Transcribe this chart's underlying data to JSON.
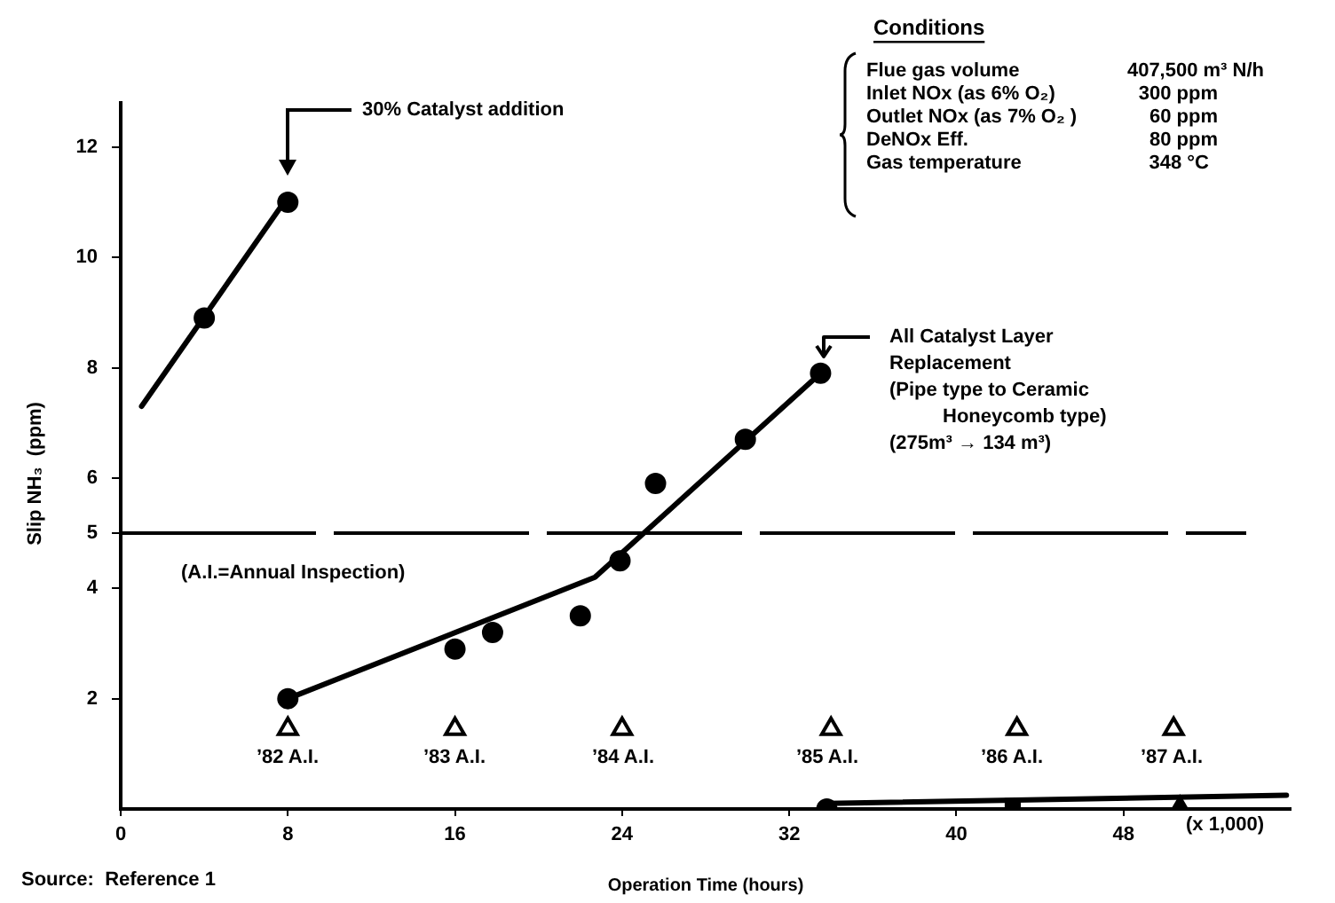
{
  "chart_data": {
    "type": "scatter",
    "xlabel": "Operation Time (hours)",
    "ylabel": "Slip NH₃  (ppm)",
    "xlim": [
      0,
      56
    ],
    "xticks": [
      0,
      8,
      16,
      24,
      32,
      40,
      48
    ],
    "ylim": [
      0,
      12.8
    ],
    "yticks": [
      2,
      4,
      5,
      6,
      8,
      10,
      12
    ],
    "grid": false,
    "legend": false,
    "marker": "circle",
    "series": [
      {
        "type": "line",
        "color": "#000000",
        "marker": "none",
        "x": [
          1,
          8
        ],
        "values": [
          7.3,
          11.1
        ]
      },
      {
        "type": "scatter",
        "color": "#000000",
        "x": [
          4,
          8
        ],
        "values": [
          8.9,
          11.0
        ]
      },
      {
        "type": "line",
        "color": "#000000",
        "marker": "none",
        "x": [
          8,
          22.7,
          33.5
        ],
        "values": [
          2.0,
          4.2,
          7.9
        ]
      },
      {
        "type": "scatter",
        "color": "#000000",
        "x": [
          8,
          16,
          17.8,
          22,
          23.9,
          25.6,
          29.9,
          33.5
        ],
        "values": [
          2.0,
          2.9,
          3.2,
          3.5,
          4.5,
          5.9,
          6.7,
          7.9
        ]
      },
      {
        "type": "line",
        "color": "#000000",
        "marker": "none",
        "x": [
          33.8,
          55.8
        ],
        "values": [
          0.1,
          0.25
        ]
      },
      {
        "type": "scatter",
        "color": "#000000",
        "marker": "circle",
        "x": [
          33.8
        ],
        "values": [
          0
        ]
      },
      {
        "type": "scatter",
        "color": "#000000",
        "marker": "square",
        "x": [
          42.7
        ],
        "values": [
          0.05
        ]
      },
      {
        "type": "scatter",
        "color": "#000000",
        "marker": "triangle",
        "x": [
          50.7
        ],
        "values": [
          0.05
        ]
      },
      {
        "type": "scatter",
        "color": "#000000",
        "marker": "triangle",
        "x": [
          8,
          16,
          24,
          34,
          42.9,
          50.4
        ],
        "values": [
          1.45,
          1.45,
          1.45,
          1.45,
          1.45,
          1.45
        ]
      }
    ],
    "ref_lines": [
      {
        "axis": "y",
        "value": 5,
        "line_style": "dashed"
      }
    ],
    "annotations": [
      "30% Catalyst addition",
      "All Catalyst Layer\nReplacement\n(Pipe type to Ceramic\nHoneycomb type)\n(275m³ → 134 m³)",
      "’82 A.I.",
      "’83 A.I.",
      "’84 A.I.",
      "’85 A.I.",
      "’86 A.I.",
      "’87 A.I.",
      "(A.I.=Annual Inspection)",
      "(x 1,000)",
      "Source:  Reference 1",
      "Conditions",
      "Flue gas volume",
      "Inlet NOx (as 6% O₂)",
      "Outlet NOx (as 7% O₂ )",
      "DeNOx Eff.",
      "Gas temperature",
      "407,500 m³ N/h",
      "300 ppm",
      "60 ppm",
      "80 ppm",
      "348 °C"
    ]
  }
}
